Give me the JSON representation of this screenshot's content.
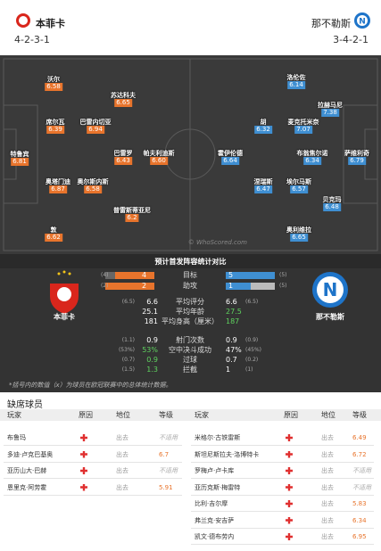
{
  "header": {
    "home": {
      "name": "本菲卡",
      "formation": "4-2-3-1"
    },
    "away": {
      "name": "那不勒斯",
      "formation": "3-4-2-1"
    }
  },
  "pitch": {
    "home_players": [
      {
        "name": "沃尔",
        "rating": "6.58"
      },
      {
        "name": "苏达科夫",
        "rating": "6.65"
      },
      {
        "name": "席尔瓦",
        "rating": "6.39"
      },
      {
        "name": "巴雷内切亚",
        "rating": "6.94"
      },
      {
        "name": "特鲁宾",
        "rating": "6.81"
      },
      {
        "name": "巴雷罗",
        "rating": "6.43"
      },
      {
        "name": "帕夫利迪斯",
        "rating": "6.60"
      },
      {
        "name": "奥塔门迪",
        "rating": "6.87"
      },
      {
        "name": "奥尔斯内斯",
        "rating": "6.58"
      },
      {
        "name": "普雷斯蒂亚尼",
        "rating": "6.2"
      },
      {
        "name": "敦",
        "rating": "6.62"
      }
    ],
    "away_players": [
      {
        "name": "洛伦佐",
        "rating": "6.14"
      },
      {
        "name": "拉赫马尼",
        "rating": "7.38"
      },
      {
        "name": "胡",
        "rating": "6.32"
      },
      {
        "name": "麦克托米奈",
        "rating": "7.07"
      },
      {
        "name": "霍伊伦德",
        "rating": "6.64"
      },
      {
        "name": "布翁焦尔诺",
        "rating": "6.34"
      },
      {
        "name": "萨维利奇",
        "rating": "6.79"
      },
      {
        "name": "涅瑞斯",
        "rating": "6.47"
      },
      {
        "name": "埃尔马斯",
        "rating": "6.57"
      },
      {
        "name": "贝克玛",
        "rating": "6.48"
      },
      {
        "name": "奥利维拉",
        "rating": "6.65"
      }
    ],
    "watermark": "© WhoScored.com"
  },
  "stats": {
    "title": "预计首发阵容统计对比",
    "home_name": "本菲卡",
    "away_name": "那不勒斯",
    "bars": [
      {
        "label": "目标",
        "home": 4,
        "home_paren": "(4)",
        "away": 5,
        "away_paren": "(5)"
      },
      {
        "label": "助攻",
        "home": 2,
        "home_paren": "(2)",
        "away": 1,
        "away_paren": "(5)"
      }
    ],
    "rows": [
      {
        "label": "平均评分",
        "home": "6.6",
        "home_paren": "(6.5)",
        "away": "6.6",
        "away_paren": "(6.5)"
      },
      {
        "label": "平均年龄",
        "home": "25.1",
        "away": "27.5"
      },
      {
        "label": "平均身高（厘米）",
        "home": "181",
        "away": "187"
      },
      {
        "label": "射门次数",
        "home": "0.9",
        "home_paren": "(1.1)",
        "away": "0.9",
        "away_paren": "(0.9)"
      },
      {
        "label": "空中决斗成功",
        "home": "53%",
        "home_paren": "(53%)",
        "away": "47%",
        "away_paren": "(45%)"
      },
      {
        "label": "过球",
        "home": "0.9",
        "home_paren": "(0.7)",
        "away": "0.7",
        "away_paren": "(0.2)"
      },
      {
        "label": "拦截",
        "home": "1.3",
        "home_paren": "(1.5)",
        "away": "1",
        "away_paren": "(1)"
      }
    ],
    "footnote": "*括号内的数值（x）为球员在欧冠联赛中的总体统计数据。"
  },
  "absent": {
    "title": "缺席球员",
    "columns": [
      "玩家",
      "原因",
      "地位",
      "等级"
    ],
    "home": [
      {
        "player": "布鲁玛",
        "status": "出去",
        "rating": "不适用"
      },
      {
        "player": "多迪·卢克巴基奥",
        "status": "出去",
        "rating": "6.7"
      },
      {
        "player": "亚历山大·巴赫",
        "status": "出去",
        "rating": "不适用"
      },
      {
        "player": "恩里克·阿劳霍",
        "status": "出去",
        "rating": "5.91"
      }
    ],
    "away": [
      {
        "player": "米格尔·古铁雷斯",
        "status": "出去",
        "rating": "6.49"
      },
      {
        "player": "斯坦尼斯拉夫·洛博特卡",
        "status": "出去",
        "rating": "6.72"
      },
      {
        "player": "罗梅卢·卢卡库",
        "status": "出去",
        "rating": "不适用"
      },
      {
        "player": "亚历克斯·梅雷特",
        "status": "出去",
        "rating": "不适用"
      },
      {
        "player": "比利·吉尔摩",
        "status": "出去",
        "rating": "5.83"
      },
      {
        "player": "弗兰克·安吉萨",
        "status": "出去",
        "rating": "6.34"
      },
      {
        "player": "凯文·德布劳内",
        "status": "出去",
        "rating": "6.95"
      }
    ]
  }
}
